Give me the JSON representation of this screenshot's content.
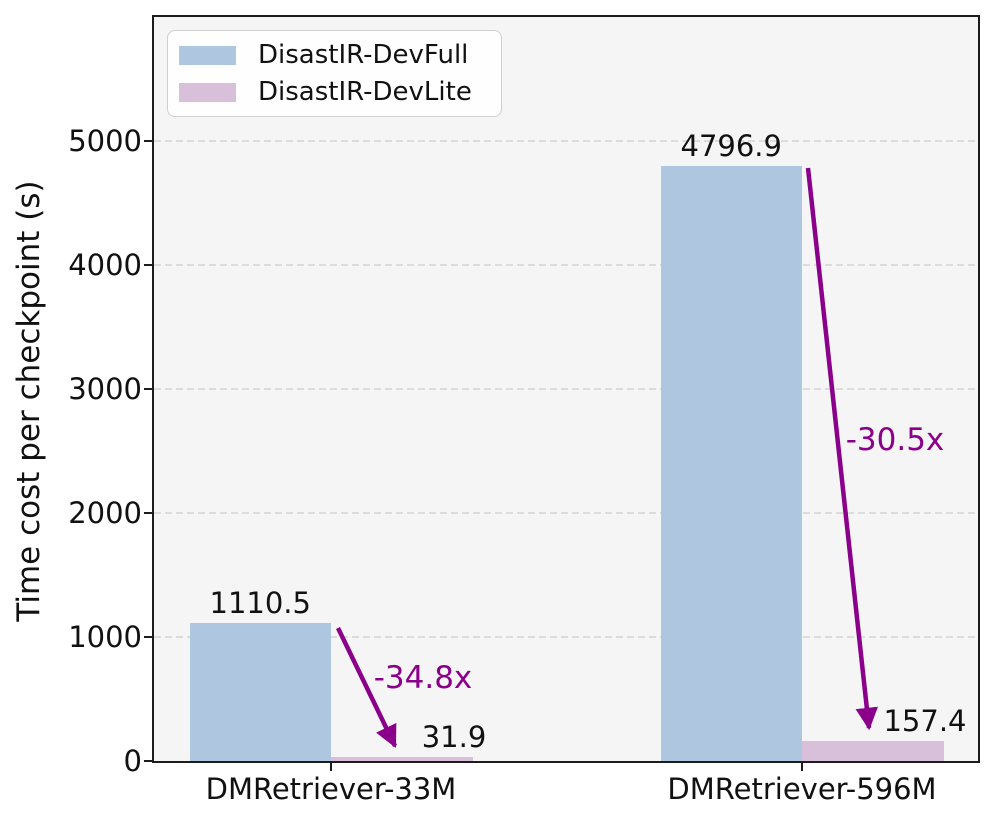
{
  "figure": {
    "background": "#ffffff",
    "plot_background": "#f5f5f5",
    "spine_color": "#1c1c1c",
    "grid_color": "#dcdcdc"
  },
  "chart_data": {
    "type": "bar",
    "title": "",
    "xlabel": "",
    "ylabel": "Time cost per checkpoint (s)",
    "ylim": [
      0,
      6000
    ],
    "yticks": [
      0,
      1000,
      2000,
      3000,
      4000,
      5000
    ],
    "yticklabels": [
      "0",
      "1000",
      "2000",
      "3000",
      "4000",
      "5000"
    ],
    "grid": {
      "axis": "y",
      "style": "dashed",
      "color": "#dcdcdc"
    },
    "legend_position": "upper left",
    "categories": [
      "DMRetriever-33M",
      "DMRetriever-596M"
    ],
    "series": [
      {
        "name": "DisastIR-DevFull",
        "color": "#aec6e0",
        "values": [
          1110.5,
          4796.9
        ],
        "value_labels": [
          "1110.5",
          "4796.9"
        ]
      },
      {
        "name": "DisastIR-DevLite",
        "color": "#d8c0da",
        "values": [
          31.9,
          157.4
        ],
        "value_labels": [
          "31.9",
          "157.4"
        ]
      }
    ],
    "annotations": [
      {
        "text": "-34.8x",
        "color": "#8b008b",
        "category": "DMRetriever-33M"
      },
      {
        "text": "-30.5x",
        "color": "#8b008b",
        "category": "DMRetriever-596M"
      }
    ]
  }
}
